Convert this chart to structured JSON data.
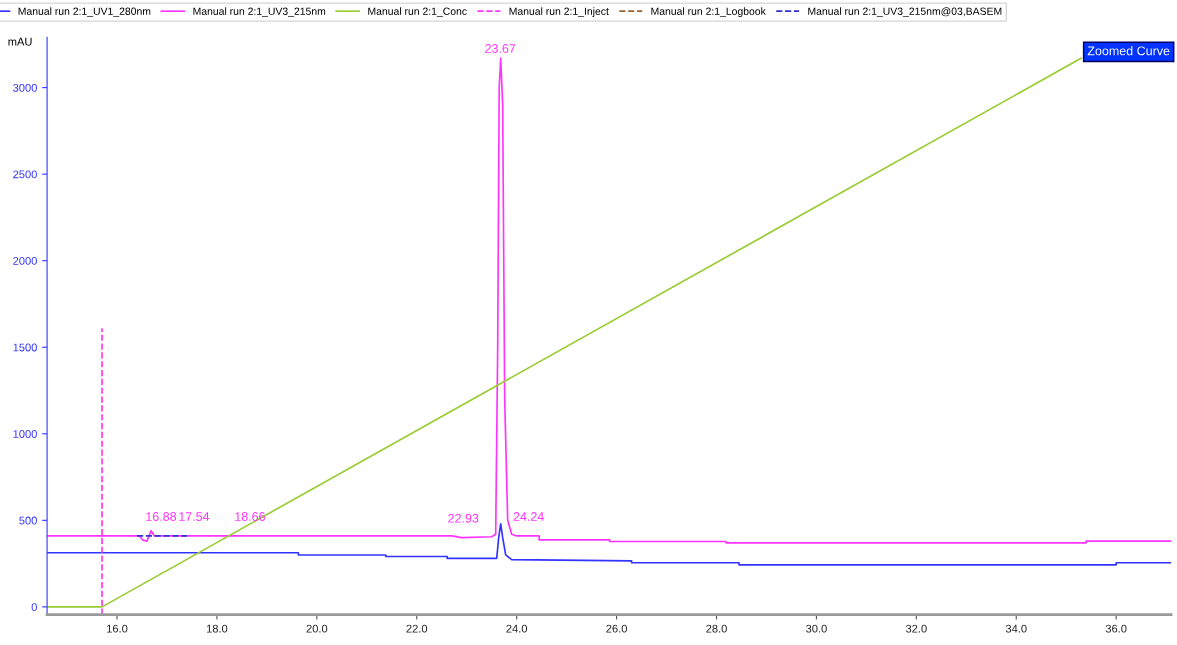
{
  "chart_data": {
    "type": "line",
    "ylabel": "mAU",
    "xlim": [
      14.6,
      37.1
    ],
    "ylim": [
      -45,
      3290
    ],
    "xticks": [
      {
        "value": 16,
        "label": "16.0"
      },
      {
        "value": 18,
        "label": "18.0"
      },
      {
        "value": 20,
        "label": "20.0"
      },
      {
        "value": 22,
        "label": "22.0"
      },
      {
        "value": 24,
        "label": "24.0"
      },
      {
        "value": 26,
        "label": "26.0"
      },
      {
        "value": 28,
        "label": "28.0"
      },
      {
        "value": 30,
        "label": "30.0"
      },
      {
        "value": 32,
        "label": "32.0"
      },
      {
        "value": 34,
        "label": "34.0"
      },
      {
        "value": 36,
        "label": "36.0"
      }
    ],
    "yticks": [
      0,
      500,
      1000,
      1500,
      2000,
      2500,
      3000
    ],
    "grid": false,
    "legend": "top",
    "marker": "none",
    "series": [
      {
        "name": "Manual run 2:1_UV1_280nm",
        "color": "#3333ff",
        "line_style": "solid",
        "x": [
          14.6,
          19.63,
          19.63,
          21.38,
          21.38,
          22.61,
          22.61,
          23.6,
          23.64,
          23.68,
          23.72,
          23.78,
          23.9,
          26.3,
          26.3,
          28.45,
          28.45,
          36.0,
          36.0,
          37.1
        ],
        "values": [
          313,
          313,
          300,
          300,
          291,
          291,
          280,
          280,
          400,
          480,
          400,
          300,
          273,
          266,
          255,
          255,
          243,
          243,
          255,
          255
        ]
      },
      {
        "name": "Manual run 2:1_UV3_215nm",
        "color": "#ff33ff",
        "line_style": "solid",
        "x": [
          14.6,
          16.45,
          16.52,
          16.6,
          16.68,
          16.75,
          22.7,
          22.9,
          23.5,
          23.58,
          23.62,
          23.65,
          23.68,
          23.72,
          23.76,
          23.82,
          23.9,
          24.0,
          24.45,
          24.45,
          25.86,
          25.86,
          28.19,
          28.19,
          35.4,
          35.4,
          37.1
        ],
        "values": [
          410,
          410,
          385,
          380,
          440,
          410,
          410,
          400,
          405,
          420,
          1500,
          3000,
          3170,
          2900,
          1200,
          500,
          420,
          410,
          410,
          387,
          387,
          378,
          378,
          370,
          370,
          380,
          380
        ]
      },
      {
        "name": "Manual run 2:1_Conc",
        "color": "#99cc33",
        "line_style": "solid",
        "x": [
          14.6,
          15.7,
          35.3
        ],
        "values": [
          0,
          0,
          3170
        ]
      },
      {
        "name": "Manual run 2:1_Inject",
        "color": "#ff33ff",
        "line_style": "dashed",
        "x": [
          15.7,
          15.7
        ],
        "values": [
          -45,
          1610
        ]
      },
      {
        "name": "Manual run 2:1_Logbook",
        "color": "#996633",
        "line_style": "dashed"
      },
      {
        "name": "Manual run 2:1_UV3_215nm@03,BASEM",
        "color": "#3333cc",
        "line_style": "dashed",
        "x": [
          16.4,
          16.8,
          17.4
        ],
        "values": [
          410,
          410,
          410
        ]
      }
    ],
    "annotations": [
      {
        "text": "16.88",
        "x": 16.88,
        "y": 410
      },
      {
        "text": "17.54",
        "x": 17.54,
        "y": 410
      },
      {
        "text": "18.66",
        "x": 18.66,
        "y": 410
      },
      {
        "text": "22.93",
        "x": 22.93,
        "y": 400
      },
      {
        "text": "23.67",
        "x": 23.67,
        "y": 3170
      },
      {
        "text": "24.24",
        "x": 24.24,
        "y": 410
      },
      "Zoomed Curve"
    ]
  }
}
